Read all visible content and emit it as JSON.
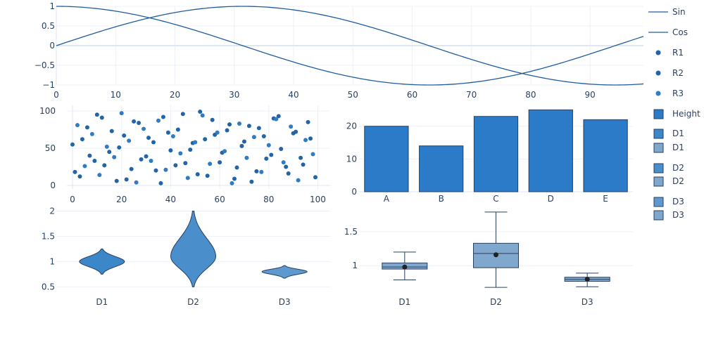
{
  "chart_data": [
    {
      "type": "line",
      "x_range": [
        0,
        99
      ],
      "xticks": [
        "0",
        "10",
        "20",
        "30",
        "40",
        "50",
        "60",
        "70",
        "80",
        "90"
      ],
      "xtick_values": [
        0,
        10,
        20,
        30,
        40,
        50,
        60,
        70,
        80,
        90
      ],
      "ylim": [
        -1,
        1
      ],
      "yticks": [
        "−1",
        "−0.5",
        "0",
        "0.5",
        "1"
      ],
      "ytick_values": [
        -1,
        -0.5,
        0,
        0.5,
        1
      ],
      "x_step": 0.5,
      "frequency": 0.05,
      "series": [
        {
          "name": "Sin",
          "function": "sin(0.05*x)",
          "color": "#1f5da0"
        },
        {
          "name": "Cos",
          "function": "cos(0.05*x)",
          "color": "#1f5da0"
        }
      ]
    },
    {
      "type": "scatter",
      "x_range": [
        0,
        99
      ],
      "y_range": [
        0,
        100
      ],
      "xticks": [
        "0",
        "20",
        "40",
        "60",
        "80",
        "100"
      ],
      "xtick_values": [
        0,
        20,
        40,
        60,
        80,
        100
      ],
      "yticks": [
        "0",
        "50",
        "100"
      ],
      "ytick_values": [
        0,
        50,
        100
      ],
      "series": [
        {
          "name": "R1",
          "color": "#2165a8",
          "x": [
            0,
            3,
            6,
            9,
            12,
            15,
            18,
            21,
            24,
            27,
            30,
            33,
            36,
            39,
            42,
            45,
            48,
            51,
            54,
            57,
            60,
            63,
            66,
            69,
            72,
            75,
            78,
            81,
            84,
            87,
            90,
            93,
            96,
            99
          ],
          "y": [
            55,
            12,
            78,
            33,
            91,
            45,
            6,
            67,
            22,
            84,
            39,
            58,
            3,
            71,
            27,
            96,
            48,
            15,
            62,
            88,
            31,
            74,
            9,
            53,
            80,
            19,
            66,
            41,
            93,
            25,
            70,
            37,
            85,
            11
          ]
        },
        {
          "name": "R2",
          "color": "#2165a8",
          "x": [
            1,
            4,
            7,
            10,
            13,
            16,
            19,
            22,
            25,
            28,
            31,
            34,
            37,
            40,
            43,
            46,
            49,
            52,
            55,
            58,
            61,
            64,
            67,
            70,
            73,
            76,
            79,
            82,
            85,
            88,
            91,
            94,
            97
          ],
          "y": [
            18,
            62,
            40,
            95,
            27,
            73,
            51,
            8,
            86,
            35,
            64,
            20,
            92,
            47,
            75,
            30,
            57,
            99,
            13,
            68,
            44,
            82,
            24,
            59,
            5,
            77,
            36,
            90,
            49,
            16,
            72,
            28,
            63
          ]
        },
        {
          "name": "R3",
          "color": "#2f7bc4",
          "x": [
            2,
            5,
            8,
            11,
            14,
            17,
            20,
            23,
            26,
            29,
            32,
            35,
            38,
            41,
            44,
            47,
            50,
            53,
            56,
            59,
            62,
            65,
            68,
            71,
            74,
            77,
            80,
            83,
            86,
            89,
            92,
            95,
            98
          ],
          "y": [
            81,
            26,
            69,
            14,
            52,
            38,
            97,
            60,
            4,
            76,
            33,
            87,
            21,
            66,
            43,
            10,
            58,
            94,
            29,
            71,
            46,
            3,
            83,
            37,
            65,
            18,
            54,
            89,
            31,
            79,
            7,
            61,
            42
          ]
        }
      ]
    },
    {
      "type": "bar",
      "categories": [
        "A",
        "B",
        "C",
        "D",
        "E"
      ],
      "series": [
        {
          "name": "Height",
          "values": [
            20,
            14,
            23,
            25,
            22
          ],
          "color": "#2b7bc8"
        }
      ],
      "ylim": [
        0,
        25.3
      ],
      "yticks": [
        "0",
        "10",
        "20"
      ],
      "ytick_values": [
        0,
        10,
        20
      ]
    },
    {
      "type": "violin",
      "categories": [
        "D1",
        "D2",
        "D3"
      ],
      "ylim": [
        0.45,
        2.02
      ],
      "yticks": [
        "0.5",
        "1",
        "1.5",
        "2"
      ],
      "ytick_values": [
        0.5,
        1,
        1.5,
        2
      ],
      "series": [
        {
          "name": "D1",
          "color": "#3c87c8",
          "min": 0.75,
          "max": 1.25,
          "center": 1.0
        },
        {
          "name": "D2",
          "color": "#4a8fcb",
          "min": 0.5,
          "max": 2.0,
          "center": 1.1
        },
        {
          "name": "D3",
          "color": "#5d98cf",
          "min": 0.67,
          "max": 0.92,
          "center": 0.8
        }
      ]
    },
    {
      "type": "box",
      "categories": [
        "D1",
        "D2",
        "D3"
      ],
      "ylim": [
        0.63,
        1.82
      ],
      "yticks": [
        "1",
        "1.5"
      ],
      "ytick_values": [
        1,
        1.5
      ],
      "series": [
        {
          "name": "D1",
          "color": "#7fa8cc",
          "min": 0.79,
          "q1": 0.95,
          "median": 0.98,
          "q3": 1.04,
          "max": 1.2,
          "mean": 0.98
        },
        {
          "name": "D2",
          "color": "#7fa8cc",
          "min": 0.68,
          "q1": 0.97,
          "median": 1.18,
          "q3": 1.33,
          "max": 1.79,
          "mean": 1.16
        },
        {
          "name": "D3",
          "color": "#7fa8cc",
          "min": 0.69,
          "q1": 0.77,
          "median": 0.8,
          "q3": 0.83,
          "max": 0.89,
          "mean": 0.8
        }
      ]
    }
  ],
  "legend": {
    "placement": "right",
    "items": [
      {
        "label": "Sin",
        "symbol": "line",
        "color": "#1f5da0"
      },
      {
        "label": "Cos",
        "symbol": "line",
        "color": "#1f5da0"
      },
      {
        "label": "R1",
        "symbol": "dot",
        "color": "#2165a8"
      },
      {
        "label": "R2",
        "symbol": "dot",
        "color": "#2165a8"
      },
      {
        "label": "R3",
        "symbol": "dot",
        "color": "#2f7bc4"
      },
      {
        "label": "Height",
        "symbol": "square",
        "color": "#2b7bc8"
      },
      {
        "label": "D1",
        "symbol": "square",
        "color": "#3c87c8"
      },
      {
        "label": "D1",
        "symbol": "square",
        "color": "#7fa8cc"
      },
      {
        "label": "D2",
        "symbol": "square",
        "color": "#4a8fcb"
      },
      {
        "label": "D2",
        "symbol": "square",
        "color": "#7fa8cc"
      },
      {
        "label": "D3",
        "symbol": "square",
        "color": "#5d98cf"
      },
      {
        "label": "D3",
        "symbol": "square",
        "color": "#7fa8cc"
      }
    ]
  },
  "colors": {
    "grid": "#ebf0f8",
    "zeroline": "#dfe6f0",
    "outline": "#2a3f5f",
    "axis_text": "#2a3f5f"
  }
}
